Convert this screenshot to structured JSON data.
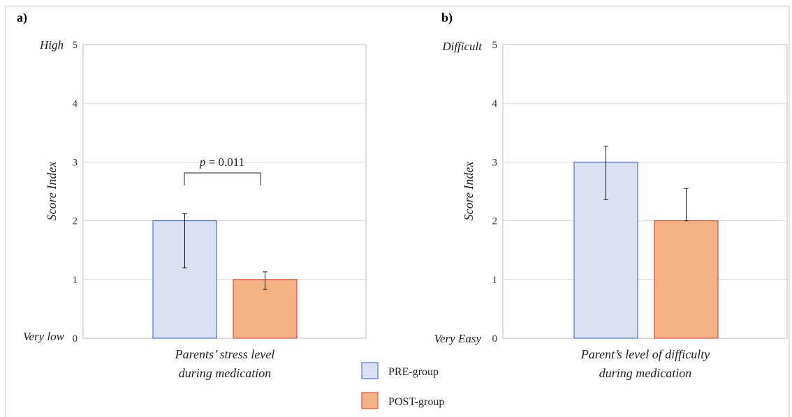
{
  "chart_data": [
    {
      "type": "bar",
      "panel_label": "a)",
      "ylabel": "Score Index",
      "ylim": [
        0,
        5
      ],
      "yticks": [
        "0",
        "1",
        "2",
        "3",
        "4",
        "5"
      ],
      "y_high_label": "High",
      "y_low_label": "Very low",
      "categories": [
        "Parents’ stress level|during medication"
      ],
      "category_lines": [
        "Parents’ stress level",
        "during medication"
      ],
      "grid": true,
      "series": [
        {
          "name": "PRE-group",
          "values": [
            2
          ],
          "error_low": [
            1.2
          ],
          "error_high": [
            2.12
          ]
        },
        {
          "name": "POST-group",
          "values": [
            1
          ],
          "error_low": [
            0.83
          ],
          "error_high": [
            1.13
          ]
        }
      ],
      "annotation": {
        "p_symbol": "p",
        "p_text": " = 0.011"
      }
    },
    {
      "type": "bar",
      "panel_label": "b)",
      "ylabel": "Score Index",
      "ylim": [
        0,
        5
      ],
      "yticks": [
        "0",
        "1",
        "2",
        "3",
        "4",
        "5"
      ],
      "y_high_label": "Difficult",
      "y_low_label": "Very Easy",
      "categories": [
        "Parent’s level of difficulty|during medication"
      ],
      "category_lines": [
        "Parent’s level of difficulty",
        "during medication"
      ],
      "grid": true,
      "series": [
        {
          "name": "PRE-group",
          "values": [
            3
          ],
          "error_low": [
            2.36
          ],
          "error_high": [
            3.27
          ]
        },
        {
          "name": "POST-group",
          "values": [
            2
          ],
          "error_low": [
            2.0
          ],
          "error_high": [
            2.55
          ]
        }
      ]
    }
  ],
  "legend": {
    "placement": "bottom-center",
    "items": [
      {
        "label": "PRE-group",
        "fill": "#d9e1f2",
        "stroke": "#2f55d4"
      },
      {
        "label": "POST-group",
        "fill": "#f4b183",
        "stroke": "#e0302a"
      }
    ]
  },
  "colors": {
    "grid": "#d9d9d9",
    "frame": "#bfbfbf",
    "error": "#111111"
  }
}
